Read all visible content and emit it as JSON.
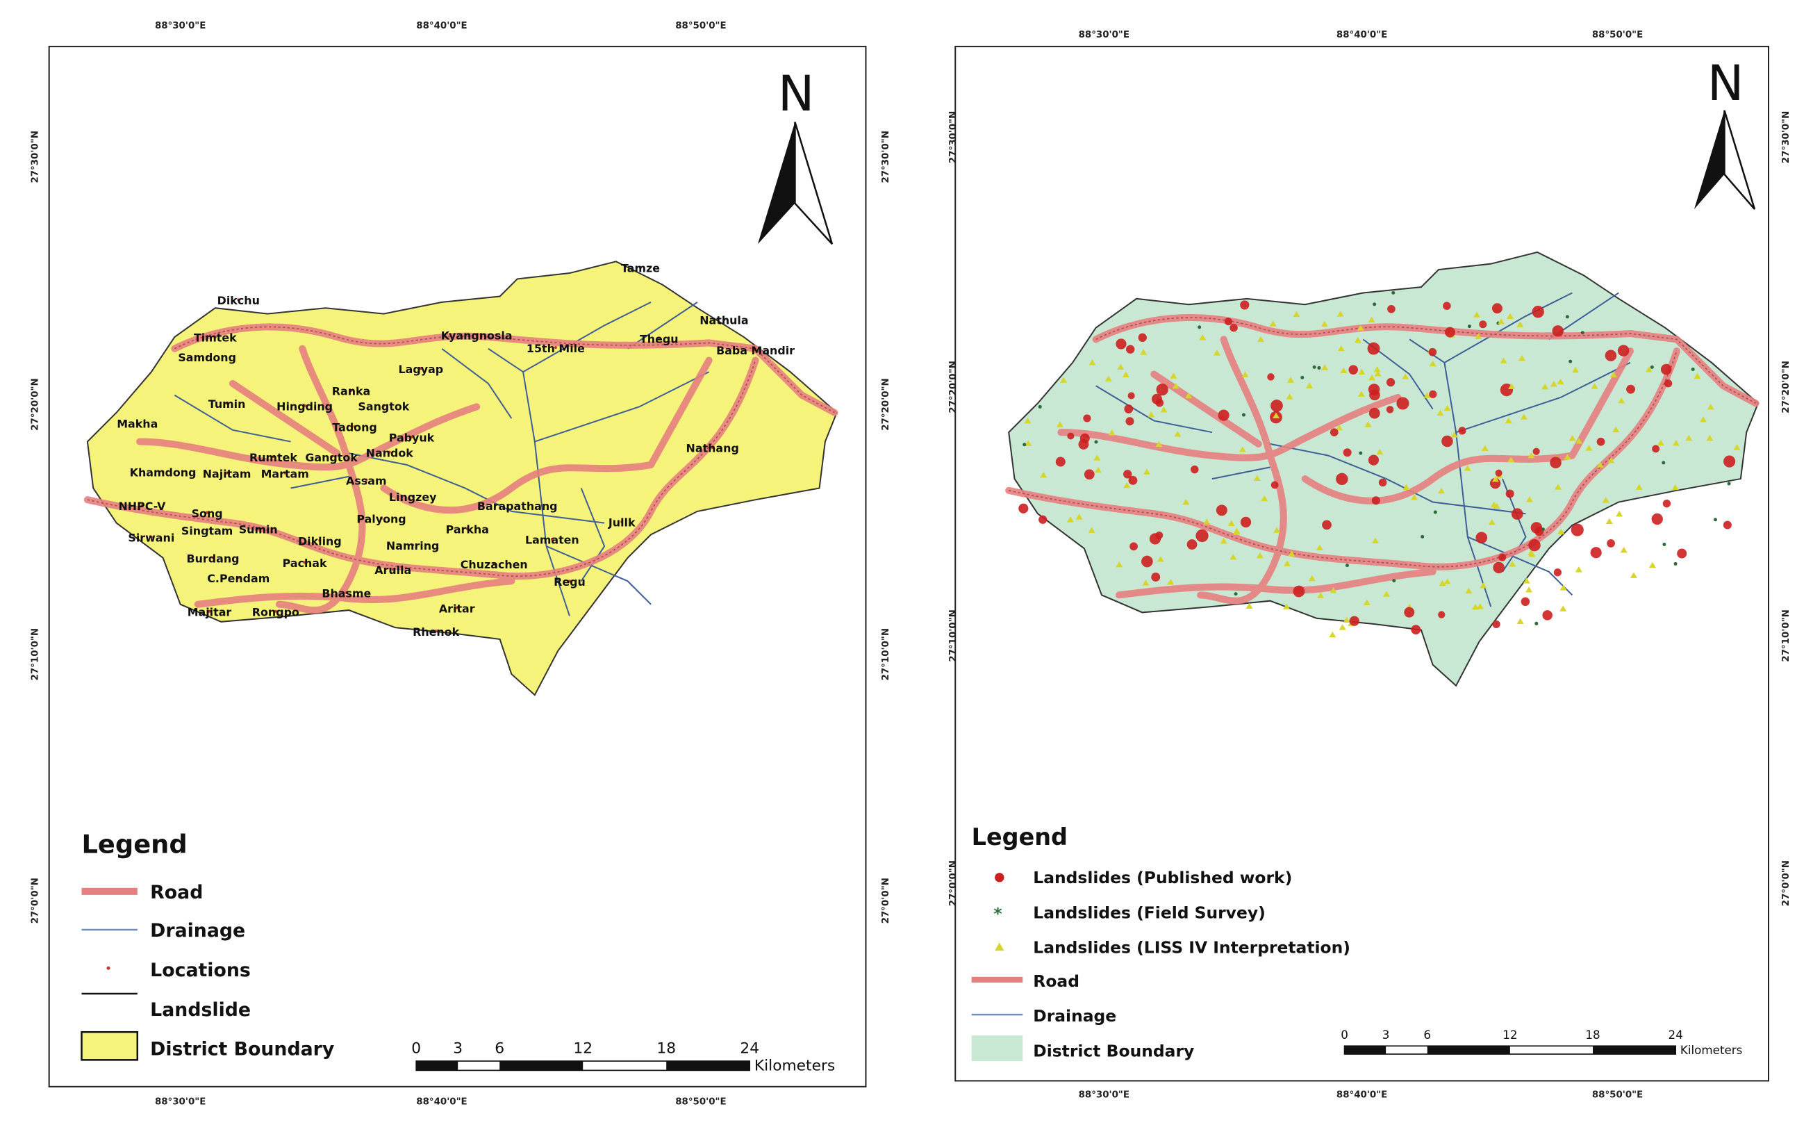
{
  "panels": [
    {
      "north": "N",
      "coords": {
        "top": [
          "88°30'0\"E",
          "88°40'0\"E",
          "88°50'0\"E"
        ],
        "bottom": [
          "88°30'0\"E",
          "88°40'0\"E",
          "88°50'0\"E"
        ],
        "left": [
          "27°30'0\"N",
          "27°20'0\"N",
          "27°10'0\"N",
          "27°0'0\"N"
        ],
        "right": [
          "27°30'0\"N",
          "27°20'0\"N",
          "27°10'0\"N",
          "27°0'0\"N"
        ]
      },
      "places": [
        "Dikchu",
        "Timtek",
        "Samdong",
        "Tumin",
        "Makha",
        "Khamdong",
        "Najitam",
        "Martam",
        "Rumtek",
        "Gangtok",
        "NHPC-V",
        "Song",
        "Sirwani",
        "Singtam",
        "Sumin",
        "Burdang",
        "C.Pendam",
        "Majitar",
        "Rongpo",
        "Ranka",
        "Hingding",
        "Tadong",
        "Sangtok",
        "Pabyuk",
        "Nandok",
        "Assam",
        "Lingzey",
        "Palyong",
        "Dikling",
        "Pachak",
        "Parkha",
        "Namring",
        "Aritar",
        "Rhenok",
        "Bhasme",
        "Arulla",
        "Chuzachen",
        "Lamaten",
        "Regu",
        "Barapathang",
        "Jullk",
        "Nathang",
        "Thegu",
        "Baba Mandir",
        "Nathula",
        "Tamze",
        "Kyangnosla",
        "15th Mile",
        "Lagyap"
      ],
      "legend": {
        "title": "Legend",
        "items": [
          "Road",
          "Drainage",
          "Locations",
          "Landslide",
          "District Boundary"
        ]
      },
      "scale": {
        "ticks": [
          0,
          3,
          6,
          12,
          18,
          24
        ],
        "unit": "Kilometers"
      }
    },
    {
      "north": "N",
      "coords": {
        "top": [
          "88°30'0\"E",
          "88°40'0\"E",
          "88°50'0\"E"
        ],
        "bottom": [
          "88°30'0\"E",
          "88°40'0\"E",
          "88°50'0\"E"
        ],
        "left": [
          "27°30'0\"N",
          "27°20'0\"N",
          "27°10'0\"N",
          "27°0'0\"N"
        ],
        "right": [
          "27°30'0\"N",
          "27°20'0\"N",
          "27°10'0\"N",
          "27°0'0\"N"
        ]
      },
      "legend": {
        "title": "Legend",
        "items": [
          "Landslides (Published work)",
          "Landslides (Field Survey)",
          "Landslides (LISS IV Interpretation)",
          "Road",
          "Drainage",
          "District Boundary"
        ]
      },
      "scale": {
        "ticks": [
          0,
          3,
          6,
          12,
          18,
          24
        ],
        "unit": "Kilometers"
      }
    }
  ]
}
